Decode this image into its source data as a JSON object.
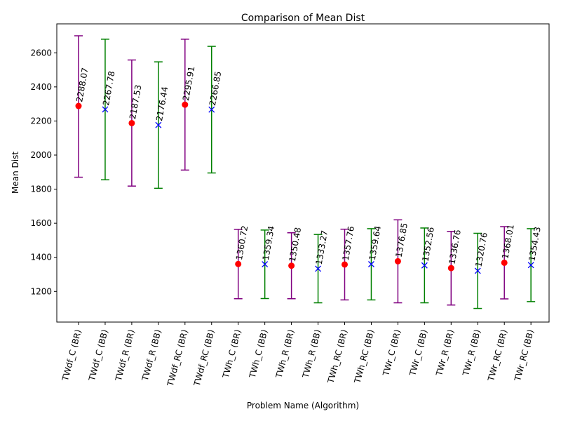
{
  "chart_data": {
    "type": "scatter",
    "title": "Comparison of Mean Dist",
    "xlabel": "Problem Name (Algorithm)",
    "ylabel": "Mean Dist",
    "ylim": [
      1020,
      2770
    ],
    "yticks": [
      1200,
      1400,
      1600,
      1800,
      2000,
      2200,
      2400,
      2600
    ],
    "grid": false,
    "series_styles": {
      "BR": {
        "marker": "circle",
        "marker_color": "#ff0000",
        "bar_color": "#800080"
      },
      "BB": {
        "marker": "x",
        "marker_color": "#0000ff",
        "bar_color": "#008000"
      }
    },
    "points": [
      {
        "category": "TWdf_C (BR)",
        "algo": "BR",
        "mean": 2288.07,
        "label": "2288.07",
        "low": 1870,
        "high": 2700
      },
      {
        "category": "TWdf_C (BB)",
        "algo": "BB",
        "mean": 2267.78,
        "label": "2267.78",
        "low": 1855,
        "high": 2680
      },
      {
        "category": "TWdf_R (BR)",
        "algo": "BR",
        "mean": 2187.53,
        "label": "2187.53",
        "low": 1818,
        "high": 2558
      },
      {
        "category": "TWdf_R (BB)",
        "algo": "BB",
        "mean": 2176.44,
        "label": "2176.44",
        "low": 1805,
        "high": 2547
      },
      {
        "category": "TWdf_RC (BR)",
        "algo": "BR",
        "mean": 2295.91,
        "label": "2295.91",
        "low": 1912,
        "high": 2680
      },
      {
        "category": "TWdf_RC (BB)",
        "algo": "BB",
        "mean": 2266.85,
        "label": "2266.85",
        "low": 1895,
        "high": 2638
      },
      {
        "category": "TWh_C (BR)",
        "algo": "BR",
        "mean": 1360.72,
        "label": "1360.72",
        "low": 1157,
        "high": 1564
      },
      {
        "category": "TWh_C (BB)",
        "algo": "BB",
        "mean": 1359.34,
        "label": "1359.34",
        "low": 1158,
        "high": 1560
      },
      {
        "category": "TWh_R (BR)",
        "algo": "BR",
        "mean": 1350.48,
        "label": "1350.48",
        "low": 1157,
        "high": 1544
      },
      {
        "category": "TWh_R (BB)",
        "algo": "BB",
        "mean": 1333.27,
        "label": "1333.27",
        "low": 1133,
        "high": 1534
      },
      {
        "category": "TWh_RC (BR)",
        "algo": "BR",
        "mean": 1357.76,
        "label": "1357.76",
        "low": 1150,
        "high": 1565
      },
      {
        "category": "TWh_RC (BB)",
        "algo": "BB",
        "mean": 1359.64,
        "label": "1359.64",
        "low": 1150,
        "high": 1568
      },
      {
        "category": "TWr_C (BR)",
        "algo": "BR",
        "mean": 1376.85,
        "label": "1376.85",
        "low": 1133,
        "high": 1620
      },
      {
        "category": "TWr_C (BB)",
        "algo": "BB",
        "mean": 1352.56,
        "label": "1352.56",
        "low": 1133,
        "high": 1572
      },
      {
        "category": "TWr_R (BR)",
        "algo": "BR",
        "mean": 1336.76,
        "label": "1336.76",
        "low": 1120,
        "high": 1552
      },
      {
        "category": "TWr_R (BB)",
        "algo": "BB",
        "mean": 1320.76,
        "label": "1320.76",
        "low": 1100,
        "high": 1541
      },
      {
        "category": "TWr_RC (BR)",
        "algo": "BR",
        "mean": 1368.01,
        "label": "1368.01",
        "low": 1156,
        "high": 1580
      },
      {
        "category": "TWr_RC (BB)",
        "algo": "BB",
        "mean": 1354.43,
        "label": "1354.43",
        "low": 1140,
        "high": 1568
      }
    ]
  }
}
